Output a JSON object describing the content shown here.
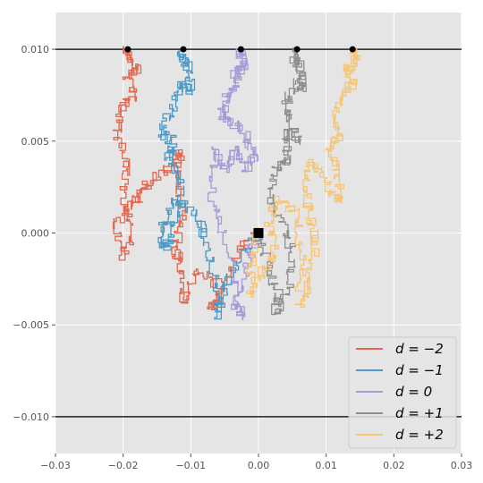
{
  "chart_data": {
    "type": "line",
    "style": "ggplot",
    "background": "#e5e5e5",
    "grid": true,
    "xlim": [
      -0.03,
      0.03
    ],
    "ylim": [
      -0.012,
      0.012
    ],
    "xticks": [
      "-0.03",
      "-0.02",
      "-0.01",
      "0.00",
      "0.01",
      "0.02",
      "0.03"
    ],
    "yticks": [
      "-0.010",
      "-0.005",
      "0.000",
      "0.005",
      "0.010"
    ],
    "xtick_values": [
      -0.03,
      -0.02,
      -0.01,
      0.0,
      0.01,
      0.02,
      0.03
    ],
    "ytick_values": [
      -0.01,
      -0.005,
      0.0,
      0.005,
      0.01
    ],
    "hlines": [
      0.01,
      -0.01
    ],
    "start_point": {
      "x": 0.0,
      "y": 0.0,
      "marker": "square",
      "color": "#000000"
    },
    "legend_position": "lower-right",
    "series": [
      {
        "name": "d = −2",
        "color": "#e2684f",
        "end": {
          "x": -0.0193,
          "y": 0.01
        },
        "path": [
          [
            0.0,
            0.0
          ],
          [
            -0.003,
            -0.001
          ],
          [
            -0.006,
            -0.0035
          ],
          [
            -0.007,
            -0.0042
          ],
          [
            -0.005,
            -0.003
          ],
          [
            -0.009,
            -0.002
          ],
          [
            -0.011,
            -0.0038
          ],
          [
            -0.0115,
            -0.0015
          ],
          [
            -0.0125,
            -0.001
          ],
          [
            -0.011,
            0.001
          ],
          [
            -0.012,
            0.003
          ],
          [
            -0.0115,
            0.0045
          ],
          [
            -0.0135,
            0.0035
          ],
          [
            -0.016,
            0.0028
          ],
          [
            -0.0175,
            0.002
          ],
          [
            -0.019,
            0.0015
          ],
          [
            -0.021,
            0.0005
          ],
          [
            -0.0205,
            -0.0012
          ],
          [
            -0.0185,
            0.0
          ],
          [
            -0.02,
            0.002
          ],
          [
            -0.0195,
            0.004
          ],
          [
            -0.021,
            0.0055
          ],
          [
            -0.0205,
            0.0068
          ],
          [
            -0.0185,
            0.0075
          ],
          [
            -0.0195,
            0.0088
          ],
          [
            -0.0178,
            0.009
          ],
          [
            -0.0193,
            0.0098
          ],
          [
            -0.0193,
            0.01
          ]
        ]
      },
      {
        "name": "d = −1",
        "color": "#4d9ac6",
        "end": {
          "x": -0.0111,
          "y": 0.01
        },
        "path": [
          [
            0.0,
            0.0
          ],
          [
            -0.003,
            -0.0015
          ],
          [
            -0.005,
            -0.003
          ],
          [
            -0.006,
            -0.0045
          ],
          [
            -0.0065,
            -0.002
          ],
          [
            -0.008,
            0.0
          ],
          [
            -0.0095,
            0.001
          ],
          [
            -0.012,
            0.0018
          ],
          [
            -0.014,
            0.0005
          ],
          [
            -0.0145,
            -0.0008
          ],
          [
            -0.013,
            -0.0005
          ],
          [
            -0.012,
            0.001
          ],
          [
            -0.0115,
            0.003
          ],
          [
            -0.0135,
            0.004
          ],
          [
            -0.0125,
            0.005
          ],
          [
            -0.0145,
            0.0055
          ],
          [
            -0.0128,
            0.0068
          ],
          [
            -0.0115,
            0.0082
          ],
          [
            -0.01,
            0.0078
          ],
          [
            -0.0102,
            0.009
          ],
          [
            -0.0115,
            0.0095
          ],
          [
            -0.0111,
            0.01
          ]
        ]
      },
      {
        "name": "d = 0",
        "color": "#a89ad9",
        "end": {
          "x": -0.0026,
          "y": 0.01
        },
        "path": [
          [
            0.0,
            0.0
          ],
          [
            -0.002,
            -0.002
          ],
          [
            -0.0035,
            -0.004
          ],
          [
            -0.0025,
            -0.0045
          ],
          [
            -0.004,
            -0.002
          ],
          [
            -0.0055,
            0.0005
          ],
          [
            -0.007,
            0.002
          ],
          [
            -0.0065,
            0.0045
          ],
          [
            -0.005,
            0.0035
          ],
          [
            -0.0035,
            0.0045
          ],
          [
            -0.002,
            0.0035
          ],
          [
            -0.0005,
            0.0042
          ],
          [
            -0.002,
            0.0055
          ],
          [
            -0.004,
            0.006
          ],
          [
            -0.0055,
            0.0065
          ],
          [
            -0.0045,
            0.0075
          ],
          [
            -0.003,
            0.008
          ],
          [
            -0.0035,
            0.0088
          ],
          [
            -0.002,
            0.009
          ],
          [
            -0.0026,
            0.0097
          ],
          [
            -0.0026,
            0.01
          ]
        ]
      },
      {
        "name": "d = +1",
        "color": "#8f8f8f",
        "end": {
          "x": 0.0057,
          "y": 0.01
        },
        "path": [
          [
            0.0,
            0.0
          ],
          [
            0.0015,
            -0.002
          ],
          [
            0.003,
            -0.0035
          ],
          [
            0.0025,
            -0.0045
          ],
          [
            0.0045,
            -0.003
          ],
          [
            0.005,
            -0.001
          ],
          [
            0.0035,
            0.0005
          ],
          [
            0.002,
            0.002
          ],
          [
            0.0025,
            0.0035
          ],
          [
            0.0045,
            0.004
          ],
          [
            0.004,
            0.0055
          ],
          [
            0.006,
            0.005
          ],
          [
            0.0045,
            0.0062
          ],
          [
            0.004,
            0.0072
          ],
          [
            0.0055,
            0.0082
          ],
          [
            0.0065,
            0.0078
          ],
          [
            0.0062,
            0.009
          ],
          [
            0.0052,
            0.0095
          ],
          [
            0.0057,
            0.01
          ]
        ]
      },
      {
        "name": "d = +2",
        "color": "#f6c575",
        "end": {
          "x": 0.0139,
          "y": 0.01
        },
        "path": [
          [
            0.0,
            0.0
          ],
          [
            -0.001,
            -0.0018
          ],
          [
            -0.0015,
            -0.0035
          ],
          [
            0.0005,
            -0.002
          ],
          [
            0.0025,
            -0.001
          ],
          [
            0.0015,
            0.0005
          ],
          [
            0.0025,
            0.0018
          ],
          [
            0.0055,
            0.001
          ],
          [
            0.0065,
            -0.0015
          ],
          [
            0.006,
            -0.004
          ],
          [
            0.0075,
            -0.0025
          ],
          [
            0.0085,
            -0.0005
          ],
          [
            0.0075,
            0.001
          ],
          [
            0.007,
            0.0025
          ],
          [
            0.0075,
            0.0038
          ],
          [
            0.0095,
            0.0032
          ],
          [
            0.011,
            0.0022
          ],
          [
            0.0125,
            0.0018
          ],
          [
            0.0115,
            0.0035
          ],
          [
            0.0105,
            0.0045
          ],
          [
            0.012,
            0.0055
          ],
          [
            0.011,
            0.0065
          ],
          [
            0.0125,
            0.0075
          ],
          [
            0.014,
            0.0082
          ],
          [
            0.0132,
            0.009
          ],
          [
            0.0145,
            0.0095
          ],
          [
            0.0139,
            0.01
          ]
        ]
      }
    ],
    "legend": [
      {
        "label": "d = −2",
        "color": "#e2684f"
      },
      {
        "label": "d = −1",
        "color": "#4d9ac6"
      },
      {
        "label": "d = 0",
        "color": "#a89ad9"
      },
      {
        "label": "d = +1",
        "color": "#8f8f8f"
      },
      {
        "label": "d = +2",
        "color": "#f6c575"
      }
    ]
  }
}
